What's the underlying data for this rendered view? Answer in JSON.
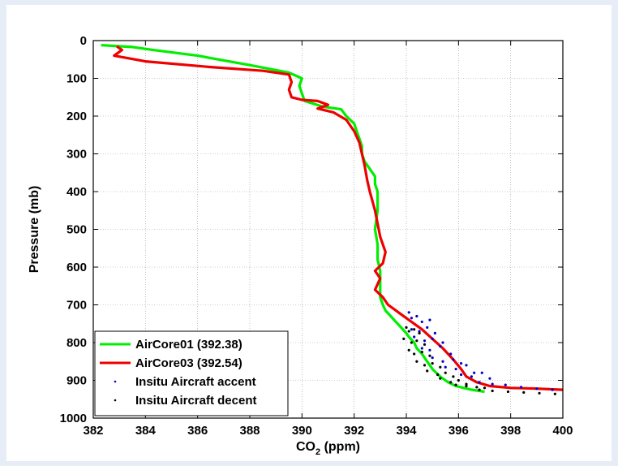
{
  "chart_data": {
    "type": "line",
    "xlabel": "CO2 (ppm)",
    "xlabel_main": "CO",
    "xlabel_sub": "2",
    "xlabel_rest": " (ppm)",
    "ylabel": "Pressure (mb)",
    "xlim": [
      382,
      400
    ],
    "ylim": [
      0,
      1000
    ],
    "y_reversed": true,
    "grid": true,
    "legend_position": "bottom-left",
    "x_ticks": [
      "382",
      "384",
      "386",
      "388",
      "390",
      "392",
      "394",
      "396",
      "398",
      "400"
    ],
    "y_ticks": [
      "0",
      "100",
      "200",
      "300",
      "400",
      "500",
      "600",
      "700",
      "800",
      "900",
      "1000"
    ],
    "series": [
      {
        "name": "AirCore01 (392.38)",
        "color": "#00ee00",
        "style": "line",
        "x": [
          382.3,
          383.5,
          384.3,
          386.0,
          388.0,
          389.5,
          390.0,
          389.9,
          390.0,
          390.1,
          390.8,
          391.5,
          391.7,
          392.0,
          392.1,
          392.2,
          392.3,
          392.3,
          392.4,
          392.6,
          392.8,
          392.8,
          392.9,
          392.9,
          392.8,
          392.9,
          392.9,
          393.0,
          393.0,
          393.0,
          393.1,
          393.2,
          393.4,
          393.6,
          393.8,
          394.0,
          394.1,
          394.3,
          394.4,
          394.6,
          394.8,
          395.0,
          395.3,
          395.6,
          395.9,
          396.2,
          396.5,
          397.0
        ],
        "y": [
          12,
          17,
          25,
          40,
          65,
          85,
          100,
          120,
          140,
          160,
          175,
          182,
          200,
          220,
          240,
          260,
          280,
          300,
          320,
          340,
          360,
          380,
          400,
          450,
          500,
          540,
          580,
          610,
          650,
          680,
          700,
          715,
          730,
          745,
          760,
          775,
          785,
          800,
          815,
          830,
          850,
          870,
          890,
          905,
          915,
          920,
          925,
          930
        ]
      },
      {
        "name": "AirCore03 (392.54)",
        "color": "#ee0000",
        "style": "line",
        "x": [
          382.9,
          383.1,
          382.8,
          384.0,
          386.5,
          388.5,
          389.5,
          389.6,
          389.5,
          389.6,
          390.0,
          390.6,
          391.0,
          390.6,
          391.2,
          391.7,
          392.0,
          392.2,
          392.3,
          392.4,
          392.5,
          392.6,
          392.8,
          393.0,
          393.2,
          393.1,
          392.8,
          393.0,
          392.8,
          393.1,
          393.3,
          393.5,
          393.7,
          394.0,
          394.3,
          394.6,
          395.0,
          395.4,
          395.8,
          396.1,
          396.3,
          396.7,
          397.2,
          398.0,
          399.0,
          400.0
        ],
        "y": [
          15,
          25,
          40,
          55,
          70,
          80,
          90,
          110,
          130,
          150,
          157,
          160,
          170,
          180,
          190,
          210,
          240,
          270,
          300,
          330,
          370,
          400,
          450,
          520,
          560,
          590,
          610,
          630,
          660,
          680,
          700,
          710,
          720,
          735,
          750,
          765,
          790,
          815,
          845,
          870,
          890,
          905,
          915,
          920,
          922,
          925
        ]
      },
      {
        "name": "Insitu Aircraft accent",
        "color": "#0000cc",
        "style": "dots",
        "x": [
          394.1,
          394.2,
          394.4,
          394.6,
          394.9,
          394.2,
          394.5,
          394.8,
          395.1,
          394.3,
          394.7,
          395.0,
          395.4,
          394.6,
          394.9,
          395.3,
          395.7,
          395.0,
          395.4,
          395.8,
          396.1,
          395.5,
          395.9,
          396.3,
          396.6,
          396.1,
          396.5,
          396.9,
          397.2,
          396.8,
          397.3,
          397.8,
          398.4,
          399.0,
          399.6
        ],
        "y": [
          720,
          735,
          730,
          745,
          740,
          765,
          770,
          760,
          775,
          785,
          795,
          790,
          800,
          815,
          820,
          810,
          830,
          840,
          850,
          845,
          855,
          865,
          870,
          860,
          880,
          885,
          890,
          880,
          895,
          905,
          910,
          912,
          918,
          922,
          925
        ]
      },
      {
        "name": "Insitu Aircraft decent",
        "color": "#000000",
        "style": "dots",
        "x": [
          394.0,
          394.1,
          394.3,
          394.5,
          393.9,
          394.2,
          394.4,
          394.7,
          394.1,
          394.3,
          394.6,
          394.9,
          394.4,
          394.7,
          395.0,
          395.3,
          394.8,
          395.2,
          395.5,
          395.8,
          395.3,
          395.7,
          396.0,
          396.3,
          395.9,
          396.3,
          396.7,
          397.0,
          396.8,
          397.3,
          397.9,
          398.5,
          399.1,
          399.7
        ],
        "y": [
          760,
          770,
          765,
          775,
          790,
          800,
          795,
          805,
          820,
          830,
          825,
          835,
          850,
          860,
          855,
          865,
          875,
          885,
          880,
          890,
          895,
          905,
          900,
          910,
          912,
          915,
          918,
          920,
          925,
          928,
          930,
          932,
          934,
          936
        ]
      }
    ]
  }
}
